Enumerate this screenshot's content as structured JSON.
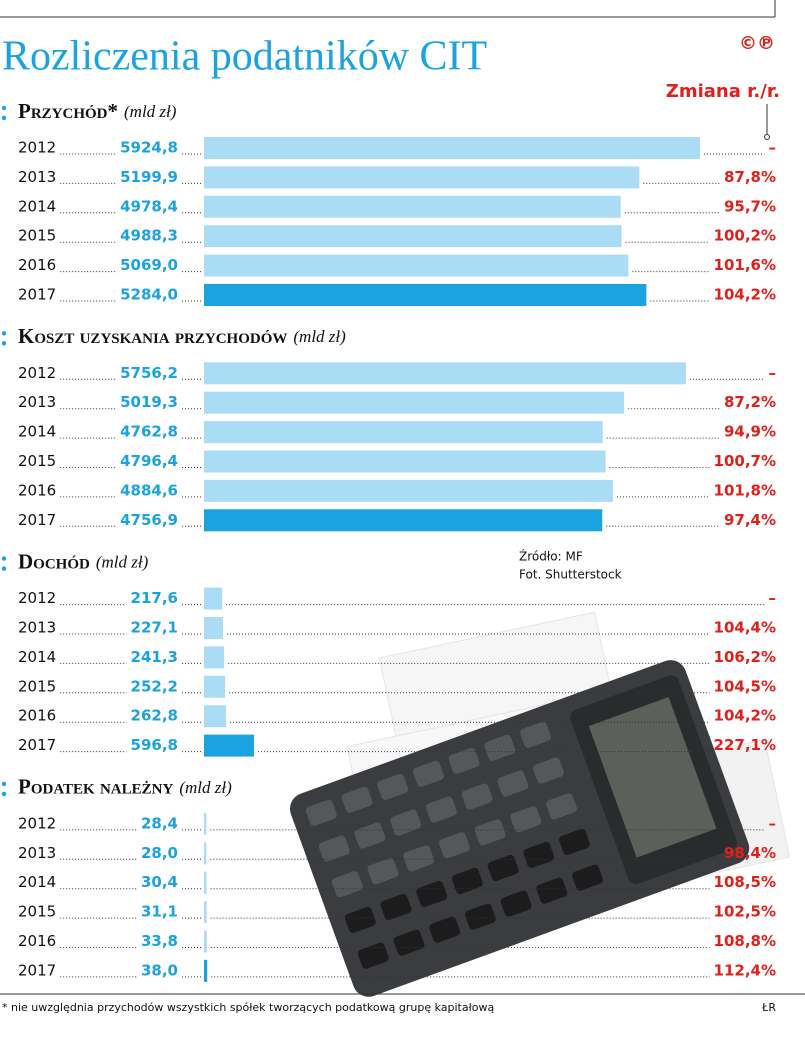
{
  "title": "Rozliczenia podatników CIT",
  "logo": "©℗",
  "change_header": "Zmiana r./r.",
  "source": "Źródło: MF",
  "photo": "Fot. Shutterstock",
  "footnote": "* nie uwzględnia przychodów wszystkich spółek tworzących podatkową grupę kapitałową",
  "author": "ŁR",
  "chart_data": [
    {
      "type": "bar",
      "title": "Przychód*",
      "unit": "(mld zł)",
      "categories": [
        "2012",
        "2013",
        "2014",
        "2015",
        "2016",
        "2017"
      ],
      "values": [
        5924.8,
        5199.9,
        4978.4,
        4988.3,
        5069.0,
        5284.0
      ],
      "value_labels": [
        "5924,8",
        "5199,9",
        "4978,4",
        "4988,3",
        "5069,0",
        "5284,0"
      ],
      "changes": [
        null,
        87.8,
        95.7,
        100.2,
        101.6,
        104.2
      ],
      "change_labels": [
        "–",
        "87,8%",
        "95,7%",
        "100,2%",
        "101,6%",
        "104,2%"
      ],
      "colors": [
        "#aadcf5",
        "#aadcf5",
        "#aadcf5",
        "#aadcf5",
        "#aadcf5",
        "#1aa3e0"
      ],
      "xlim": [
        0,
        7000
      ]
    },
    {
      "type": "bar",
      "title": "Koszt uzyskania przychodów",
      "unit": "(mld zł)",
      "categories": [
        "2012",
        "2013",
        "2014",
        "2015",
        "2016",
        "2017"
      ],
      "values": [
        5756.2,
        5019.3,
        4762.8,
        4796.4,
        4884.6,
        4756.9
      ],
      "value_labels": [
        "5756,2",
        "5019,3",
        "4762,8",
        "4796,4",
        "4884,6",
        "4756,9"
      ],
      "changes": [
        null,
        87.2,
        94.9,
        100.7,
        101.8,
        97.4
      ],
      "change_labels": [
        "–",
        "87,2%",
        "94,9%",
        "100,7%",
        "101,8%",
        "97,4%"
      ],
      "colors": [
        "#aadcf5",
        "#aadcf5",
        "#aadcf5",
        "#aadcf5",
        "#aadcf5",
        "#1aa3e0"
      ],
      "xlim": [
        0,
        7000
      ]
    },
    {
      "type": "bar",
      "title": "Dochód",
      "unit": "(mld zł)",
      "categories": [
        "2012",
        "2013",
        "2014",
        "2015",
        "2016",
        "2017"
      ],
      "values": [
        217.6,
        227.1,
        241.3,
        252.2,
        262.8,
        596.8
      ],
      "value_labels": [
        "217,6",
        "227,1",
        "241,3",
        "252,2",
        "262,8",
        "596,8"
      ],
      "changes": [
        null,
        104.4,
        106.2,
        104.5,
        104.2,
        227.1
      ],
      "change_labels": [
        "–",
        "104,4%",
        "106,2%",
        "104,5%",
        "104,2%",
        "227,1%"
      ],
      "colors": [
        "#aadcf5",
        "#aadcf5",
        "#aadcf5",
        "#aadcf5",
        "#aadcf5",
        "#1aa3e0"
      ],
      "xlim": [
        0,
        7000
      ]
    },
    {
      "type": "bar",
      "title": "Podatek należny",
      "unit": "(mld zł)",
      "categories": [
        "2012",
        "2013",
        "2014",
        "2015",
        "2016",
        "2017"
      ],
      "values": [
        28.4,
        28.0,
        30.4,
        31.1,
        33.8,
        38.0
      ],
      "value_labels": [
        "28,4",
        "28,0",
        "30,4",
        "31,1",
        "33,8",
        "38,0"
      ],
      "changes": [
        null,
        98.4,
        108.5,
        102.5,
        108.8,
        112.4
      ],
      "change_labels": [
        "–",
        "98,4%",
        "108,5%",
        "102,5%",
        "108,8%",
        "112,4%"
      ],
      "colors": [
        "#aadcf5",
        "#aadcf5",
        "#aadcf5",
        "#aadcf5",
        "#aadcf5",
        "#1aa3e0"
      ],
      "xlim": [
        0,
        7000
      ]
    }
  ]
}
